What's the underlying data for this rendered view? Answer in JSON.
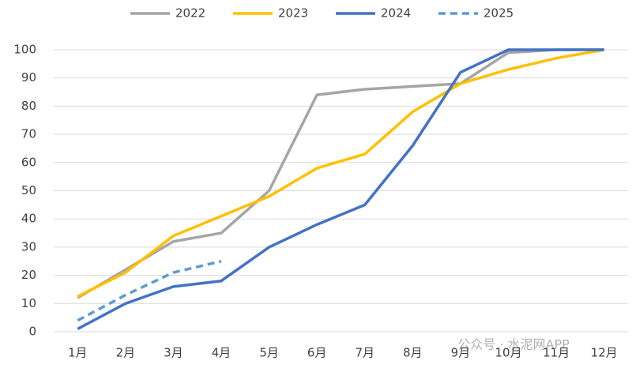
{
  "chart_data": {
    "type": "line",
    "categories": [
      "1月",
      "2月",
      "3月",
      "4月",
      "5月",
      "6月",
      "7月",
      "8月",
      "9月",
      "10月",
      "11月",
      "12月"
    ],
    "series": [
      {
        "name": "2022",
        "color": "#a5a5a5",
        "values": [
          12,
          22,
          32,
          35,
          50,
          84,
          86,
          87,
          88,
          99,
          100,
          100
        ]
      },
      {
        "name": "2023",
        "color": "#ffc000",
        "values": [
          12.5,
          21,
          34,
          41,
          48,
          58,
          63,
          78,
          88,
          93,
          97,
          100
        ]
      },
      {
        "name": "2024",
        "color": "#4472c4",
        "values": [
          1,
          10,
          16,
          18,
          30,
          38,
          45,
          66,
          92,
          100,
          100,
          100
        ]
      },
      {
        "name": "2025",
        "color": "#5b9bd5",
        "dashed": true,
        "values": [
          4,
          13,
          21,
          25,
          null,
          null,
          null,
          null,
          null,
          null,
          null,
          null
        ]
      }
    ],
    "ylim": [
      0,
      100
    ],
    "yticks": [
      0,
      10,
      20,
      30,
      40,
      50,
      60,
      70,
      80,
      90,
      100
    ],
    "grid": true,
    "legend": "top",
    "watermark": "公众号 · 水泥网APP"
  }
}
